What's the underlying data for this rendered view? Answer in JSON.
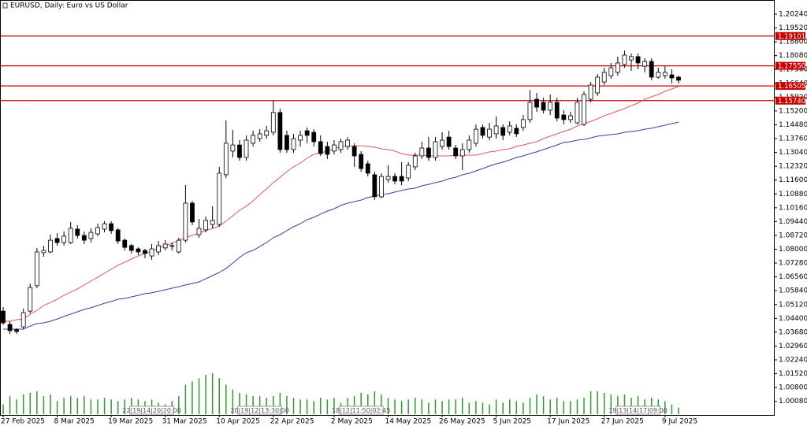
{
  "chart_data": {
    "type": "candlestick",
    "title": "EURUSD, Daily:  Euro vs US Dollar",
    "categories": [
      "27 Feb 2025",
      null,
      null,
      null,
      null,
      null,
      null,
      null,
      "8 Mar 2025",
      null,
      null,
      null,
      null,
      null,
      null,
      null,
      "19 Mar 2025",
      null,
      null,
      null,
      null,
      null,
      null,
      null,
      "31 Mar 2025",
      null,
      null,
      null,
      null,
      null,
      null,
      null,
      "10 Apr 2025",
      null,
      null,
      null,
      null,
      null,
      null,
      null,
      "22 Apr 2025",
      null,
      null,
      null,
      null,
      null,
      null,
      null,
      null,
      "2 May 2025",
      null,
      null,
      null,
      null,
      null,
      null,
      null,
      "14 May 2025",
      null,
      null,
      null,
      null,
      null,
      null,
      null,
      "26 May 2025",
      null,
      null,
      null,
      null,
      null,
      null,
      null,
      "5 Jun 2025",
      null,
      null,
      null,
      null,
      null,
      null,
      null,
      "17 Jun 2025",
      null,
      null,
      null,
      null,
      null,
      null,
      null,
      "27 Jun 2025",
      null,
      null,
      null,
      null,
      null,
      null,
      null,
      null,
      "9 Jul 2025",
      null,
      null
    ],
    "ohlc": {
      "open": [
        1.0478,
        1.0409,
        1.038,
        1.0396,
        1.0478,
        1.061,
        1.0782,
        1.0786,
        1.0856,
        1.0835,
        1.0835,
        1.0905,
        1.0872,
        1.0856,
        1.088,
        1.0905,
        1.0933,
        1.0901,
        1.0847,
        1.0819,
        1.0802,
        1.0794,
        1.0765,
        1.0786,
        1.0807,
        1.0815,
        1.0786,
        1.0847,
        1.104,
        1.0876,
        1.0901,
        1.0929,
        1.0929,
        1.1188,
        1.1311,
        1.1343,
        1.1278,
        1.1352,
        1.1376,
        1.1393,
        1.1409,
        1.1512,
        1.1393,
        1.1319,
        1.1368,
        1.1417,
        1.1409,
        1.136,
        1.1335,
        1.1311,
        1.1319,
        1.1335,
        1.1335,
        1.1294,
        1.1245,
        1.1188,
        1.1073,
        1.1163,
        1.1179,
        1.1179,
        1.1171,
        1.1229,
        1.1286,
        1.1327,
        1.1278,
        1.1335,
        1.1384,
        1.1327,
        1.1286,
        1.1319,
        1.1352,
        1.1434,
        1.1384,
        1.1401,
        1.1434,
        1.1409,
        1.143,
        1.1434,
        1.1475,
        1.1581,
        1.1565,
        1.1524,
        1.1565,
        1.1499,
        1.1475,
        1.1458,
        1.145,
        1.1581,
        1.1614,
        1.1671,
        1.1704,
        1.1721,
        1.1762,
        1.1786,
        1.1803,
        1.1753,
        1.1778,
        1.1696,
        1.1704,
        1.1708,
        1.1696
      ],
      "high": [
        1.0499,
        1.0425,
        1.0388,
        1.0491,
        1.0622,
        1.0807,
        1.0819,
        1.0876,
        1.0884,
        1.0892,
        1.0942,
        1.0925,
        1.0892,
        1.0909,
        1.0933,
        1.0946,
        1.0946,
        1.0909,
        1.0856,
        1.0827,
        1.081,
        1.0802,
        1.0827,
        1.0843,
        1.0847,
        1.0835,
        1.086,
        1.1134,
        1.1052,
        1.0958,
        1.097,
        1.1024,
        1.1229,
        1.1471,
        1.1421,
        1.1368,
        1.1393,
        1.1417,
        1.1425,
        1.1442,
        1.1573,
        1.1532,
        1.1417,
        1.1401,
        1.1417,
        1.1434,
        1.1425,
        1.1393,
        1.136,
        1.1368,
        1.1376,
        1.1384,
        1.1352,
        1.1311,
        1.1261,
        1.1204,
        1.1196,
        1.1237,
        1.1196,
        1.1253,
        1.1253,
        1.1302,
        1.136,
        1.1384,
        1.1384,
        1.1409,
        1.1417,
        1.1343,
        1.1352,
        1.1393,
        1.145,
        1.145,
        1.1458,
        1.1491,
        1.145,
        1.1466,
        1.145,
        1.1499,
        1.163,
        1.1614,
        1.1589,
        1.1606,
        1.1589,
        1.1524,
        1.1516,
        1.1589,
        1.1622,
        1.1671,
        1.1712,
        1.1745,
        1.177,
        1.1803,
        1.1835,
        1.1819,
        1.1819,
        1.1794,
        1.1794,
        1.1745,
        1.1753,
        1.1737,
        1.1704
      ],
      "low": [
        1.0405,
        1.0359,
        1.0359,
        1.0384,
        1.0466,
        1.0597,
        1.0761,
        1.0778,
        1.0819,
        1.0819,
        1.0827,
        1.0856,
        1.0827,
        1.0835,
        1.0868,
        1.0888,
        1.088,
        1.0827,
        1.0794,
        1.0778,
        1.0769,
        1.0753,
        1.0745,
        1.0769,
        1.0794,
        1.0794,
        1.0778,
        1.0835,
        1.0925,
        1.086,
        1.0888,
        1.0909,
        1.0917,
        1.1171,
        1.1278,
        1.1261,
        1.1261,
        1.1335,
        1.136,
        1.1376,
        1.1393,
        1.1302,
        1.1302,
        1.1302,
        1.1335,
        1.1352,
        1.1335,
        1.1286,
        1.127,
        1.1294,
        1.1302,
        1.1319,
        1.1229,
        1.1204,
        1.1179,
        1.1056,
        1.1065,
        1.1147,
        1.1138,
        1.1134,
        1.1155,
        1.1212,
        1.127,
        1.1261,
        1.1261,
        1.1319,
        1.1319,
        1.127,
        1.1212,
        1.1302,
        1.1335,
        1.1376,
        1.1368,
        1.1376,
        1.1368,
        1.1393,
        1.1384,
        1.1417,
        1.1458,
        1.1516,
        1.1507,
        1.1499,
        1.1466,
        1.145,
        1.1458,
        1.145,
        1.1442,
        1.1565,
        1.1598,
        1.1655,
        1.1688,
        1.1704,
        1.1745,
        1.1729,
        1.1737,
        1.1721,
        1.168,
        1.1688,
        1.1688,
        1.1663,
        1.1663
      ],
      "close": [
        1.0417,
        1.0376,
        1.0372,
        1.047,
        1.0601,
        1.0786,
        1.0794,
        1.0847,
        1.0835,
        1.0868,
        1.0909,
        1.0872,
        1.0847,
        1.0888,
        1.0913,
        1.0933,
        1.0897,
        1.0843,
        1.081,
        1.0794,
        1.0786,
        1.0778,
        1.0802,
        1.0819,
        1.0827,
        1.0819,
        1.0847,
        1.104,
        1.0942,
        1.0909,
        1.095,
        1.095,
        1.1196,
        1.1352,
        1.1343,
        1.1278,
        1.1368,
        1.1393,
        1.1401,
        1.1417,
        1.1512,
        1.1319,
        1.1319,
        1.1376,
        1.1393,
        1.1393,
        1.136,
        1.1298,
        1.1294,
        1.1343,
        1.136,
        1.1368,
        1.1286,
        1.122,
        1.1196,
        1.1073,
        1.1179,
        1.1179,
        1.1155,
        1.1155,
        1.1237,
        1.1286,
        1.1327,
        1.1278,
        1.136,
        1.1368,
        1.1335,
        1.1286,
        1.1319,
        1.1368,
        1.1425,
        1.1393,
        1.1425,
        1.1442,
        1.1393,
        1.1442,
        1.1401,
        1.1475,
        1.1565,
        1.154,
        1.1524,
        1.1565,
        1.1483,
        1.1475,
        1.1495,
        1.1565,
        1.1606,
        1.1655,
        1.1696,
        1.1721,
        1.1745,
        1.177,
        1.1811,
        1.1803,
        1.177,
        1.1778,
        1.1696,
        1.1721,
        1.1721,
        1.1692,
        1.168
      ],
      "up_color": "#ffffff",
      "down_color": "#000000",
      "edge_color": "#000000"
    },
    "lines": [
      {
        "color": "#e05a5a",
        "values": [
          1.0425,
          1.0425,
          1.0433,
          1.0437,
          1.0462,
          1.0482,
          1.0507,
          1.0523,
          1.054,
          1.056,
          1.0577,
          1.0593,
          1.0614,
          1.0634,
          1.0655,
          1.0675,
          1.0696,
          1.0716,
          1.0733,
          1.0749,
          1.0765,
          1.0778,
          1.079,
          1.0807,
          1.0819,
          1.0831,
          1.0847,
          1.086,
          1.0872,
          1.0884,
          1.0897,
          1.0909,
          1.0921,
          1.0946,
          1.0974,
          1.1003,
          1.1024,
          1.1052,
          1.1085,
          1.1114,
          1.1147,
          1.1175,
          1.1204,
          1.1229,
          1.1249,
          1.1274,
          1.1294,
          1.1302,
          1.1311,
          1.1323,
          1.1335,
          1.1339,
          1.1339,
          1.1339,
          1.1335,
          1.1331,
          1.1323,
          1.1319,
          1.1311,
          1.1298,
          1.129,
          1.129,
          1.129,
          1.1286,
          1.1286,
          1.1286,
          1.1286,
          1.129,
          1.129,
          1.129,
          1.129,
          1.1298,
          1.1307,
          1.1311,
          1.1319,
          1.1323,
          1.1335,
          1.1343,
          1.1352,
          1.136,
          1.1376,
          1.1389,
          1.1401,
          1.1413,
          1.1425,
          1.1442,
          1.1454,
          1.1466,
          1.1479,
          1.1495,
          1.1507,
          1.152,
          1.1532,
          1.1548,
          1.1561,
          1.1581,
          1.1594,
          1.1606,
          1.1622,
          1.1635,
          1.1647
        ]
      },
      {
        "color": "#3c3ca8",
        "values": [
          1.0384,
          1.0384,
          1.0384,
          1.0384,
          1.04,
          1.0413,
          1.0417,
          1.0425,
          1.0437,
          1.045,
          1.0462,
          1.0474,
          1.0487,
          1.0495,
          1.0507,
          1.0519,
          1.0528,
          1.054,
          1.0544,
          1.0552,
          1.056,
          1.0569,
          1.0573,
          1.0581,
          1.0589,
          1.0597,
          1.0605,
          1.0614,
          1.0622,
          1.063,
          1.0646,
          1.0663,
          1.0679,
          1.07,
          1.0728,
          1.0757,
          1.0782,
          1.0794,
          1.0814,
          1.0835,
          1.086,
          1.0876,
          1.0897,
          1.0917,
          1.0933,
          1.0954,
          1.0966,
          1.0983,
          1.0999,
          1.1011,
          1.1028,
          1.104,
          1.1048,
          1.1056,
          1.1069,
          1.1077,
          1.1085,
          1.1089,
          1.1098,
          1.1106,
          1.1114,
          1.1118,
          1.113,
          1.1138,
          1.1147,
          1.1155,
          1.1167,
          1.1175,
          1.1188,
          1.1196,
          1.1208,
          1.122,
          1.1233,
          1.1245,
          1.1253,
          1.1265,
          1.1278,
          1.1286,
          1.1298,
          1.1307,
          1.1319,
          1.1331,
          1.1343,
          1.1356,
          1.136,
          1.1368,
          1.1372,
          1.138,
          1.1389,
          1.1393,
          1.1397,
          1.1401,
          1.1409,
          1.1413,
          1.1417,
          1.1425,
          1.143,
          1.1438,
          1.1446,
          1.1454,
          1.1462
        ]
      }
    ],
    "volume": {
      "color": "#2e9a2e",
      "values": [
        12,
        22,
        18,
        24,
        26,
        28,
        22,
        24,
        16,
        20,
        22,
        20,
        22,
        18,
        18,
        20,
        18,
        16,
        18,
        20,
        18,
        16,
        18,
        14,
        12,
        16,
        22,
        36,
        40,
        44,
        48,
        50,
        44,
        36,
        30,
        26,
        24,
        22,
        22,
        20,
        22,
        26,
        22,
        20,
        18,
        18,
        16,
        20,
        18,
        20,
        14,
        20,
        22,
        26,
        24,
        28,
        24,
        20,
        18,
        16,
        18,
        20,
        18,
        14,
        18,
        16,
        18,
        18,
        20,
        14,
        16,
        14,
        12,
        18,
        14,
        18,
        16,
        14,
        20,
        24,
        22,
        18,
        20,
        16,
        16,
        18,
        20,
        28,
        28,
        26,
        24,
        22,
        24,
        20,
        22,
        18,
        20,
        18,
        16,
        12,
        8
      ]
    },
    "levels": [
      {
        "value": 1.19101,
        "label": "1.19101"
      },
      {
        "value": 1.1755,
        "label": "1.17550"
      },
      {
        "value": 1.16505,
        "label": "1.16505"
      },
      {
        "value": 1.1574,
        "label": "1.15740"
      }
    ],
    "level_color": "#c80000",
    "separator_labels": [
      "22|19|14|20|20:00",
      "20|19|12|13:30|00",
      "18|12|11:50|02:45",
      "19|13|14|17|09:00"
    ],
    "ylim": [
      0.99371,
      1.20978
    ],
    "yticks": [
      {
        "value": 1.2024,
        "label": "1.20240"
      },
      {
        "value": 1.1952,
        "label": "1.19520"
      },
      {
        "value": 1.188,
        "label": "1.18800"
      },
      {
        "value": 1.1808,
        "label": "1.18080"
      },
      {
        "value": 1.1736,
        "label": "1.17360"
      },
      {
        "value": 1.1664,
        "label": "1.16640"
      },
      {
        "value": 1.1592,
        "label": "1.15920"
      },
      {
        "value": 1.152,
        "label": "1.15200"
      },
      {
        "value": 1.1448,
        "label": "1.14480"
      },
      {
        "value": 1.1376,
        "label": "1.13760"
      },
      {
        "value": 1.1304,
        "label": "1.13040"
      },
      {
        "value": 1.1232,
        "label": "1.12320"
      },
      {
        "value": 1.116,
        "label": "1.11600"
      },
      {
        "value": 1.1088,
        "label": "1.10880"
      },
      {
        "value": 1.1016,
        "label": "1.10160"
      },
      {
        "value": 1.0944,
        "label": "1.09440"
      },
      {
        "value": 1.0872,
        "label": "1.08720"
      },
      {
        "value": 1.08,
        "label": "1.08000"
      },
      {
        "value": 1.0728,
        "label": "1.07280"
      },
      {
        "value": 1.0656,
        "label": "1.06560"
      },
      {
        "value": 1.0584,
        "label": "1.05840"
      },
      {
        "value": 1.0512,
        "label": "1.05120"
      },
      {
        "value": 1.044,
        "label": "1.04400"
      },
      {
        "value": 1.0368,
        "label": "1.03680"
      },
      {
        "value": 1.0296,
        "label": "1.02960"
      },
      {
        "value": 1.0224,
        "label": "1.02240"
      },
      {
        "value": 1.0152,
        "label": "1.01520"
      },
      {
        "value": 1.008,
        "label": "1.00800"
      },
      {
        "value": 1.0008,
        "label": "1.00080"
      }
    ]
  }
}
